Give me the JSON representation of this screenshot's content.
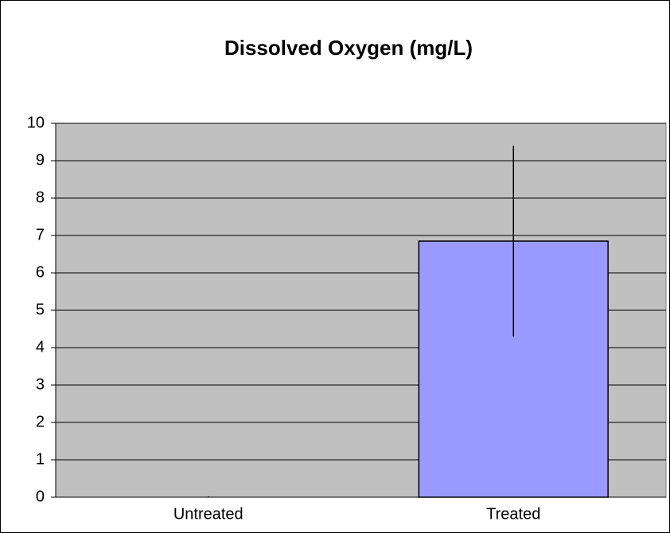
{
  "chart_data": {
    "type": "bar",
    "title": "Dissolved Oxygen (mg/L)",
    "categories": [
      "Untreated",
      "Treated"
    ],
    "values": [
      0,
      6.85
    ],
    "errors": [
      0,
      2.55
    ],
    "color": "#9999ff",
    "ylim": [
      0,
      10
    ],
    "yticks": [
      0,
      1,
      2,
      3,
      4,
      5,
      6,
      7,
      8,
      9,
      10
    ],
    "grid": true
  }
}
